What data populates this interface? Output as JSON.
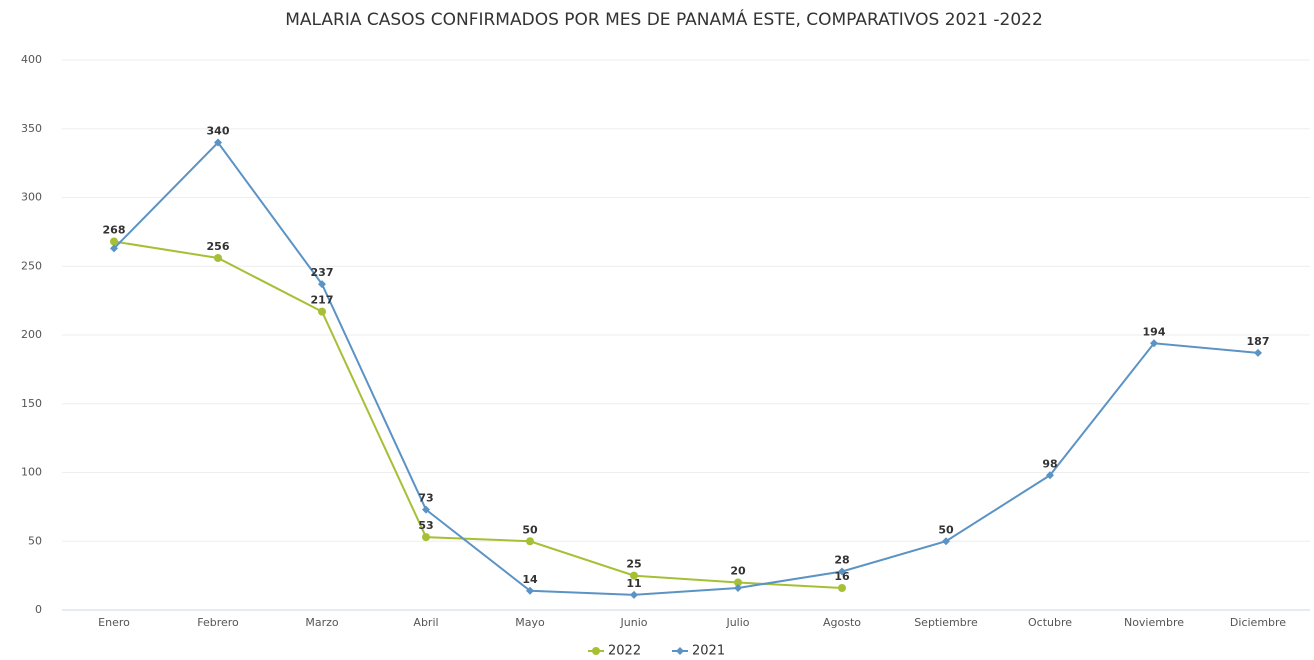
{
  "chart_data": {
    "type": "line",
    "title": "MALARIA CASOS CONFIRMADOS POR MES DE PANAMÁ ESTE, COMPARATIVOS 2021 -2022",
    "categories": [
      "Enero",
      "Febrero",
      "Marzo",
      "Abril",
      "Mayo",
      "Junio",
      "Julio",
      "Agosto",
      "Septiembre",
      "Octubre",
      "Noviembre",
      "Diciembre"
    ],
    "series": [
      {
        "name": "2022",
        "color": "#a5c035",
        "marker": "circle",
        "values": [
          268,
          256,
          217,
          53,
          50,
          25,
          20,
          16,
          null,
          null,
          null,
          null
        ],
        "value_labels": [
          "268",
          "256",
          "217",
          "53",
          "50",
          "25",
          "20",
          "16",
          null,
          null,
          null,
          null
        ]
      },
      {
        "name": "2021",
        "color": "#5b93c5",
        "marker": "diamond",
        "values": [
          263,
          340,
          237,
          73,
          14,
          11,
          16,
          28,
          50,
          98,
          194,
          187
        ],
        "value_labels": [
          null,
          "340",
          "237",
          "73",
          "14",
          "11",
          null,
          "28",
          "50",
          "98",
          "194",
          "187"
        ]
      }
    ],
    "ylim": [
      0,
      400
    ],
    "yticks": [
      0,
      50,
      100,
      150,
      200,
      250,
      300,
      350,
      400
    ],
    "grid": true,
    "legend": "bottom"
  }
}
